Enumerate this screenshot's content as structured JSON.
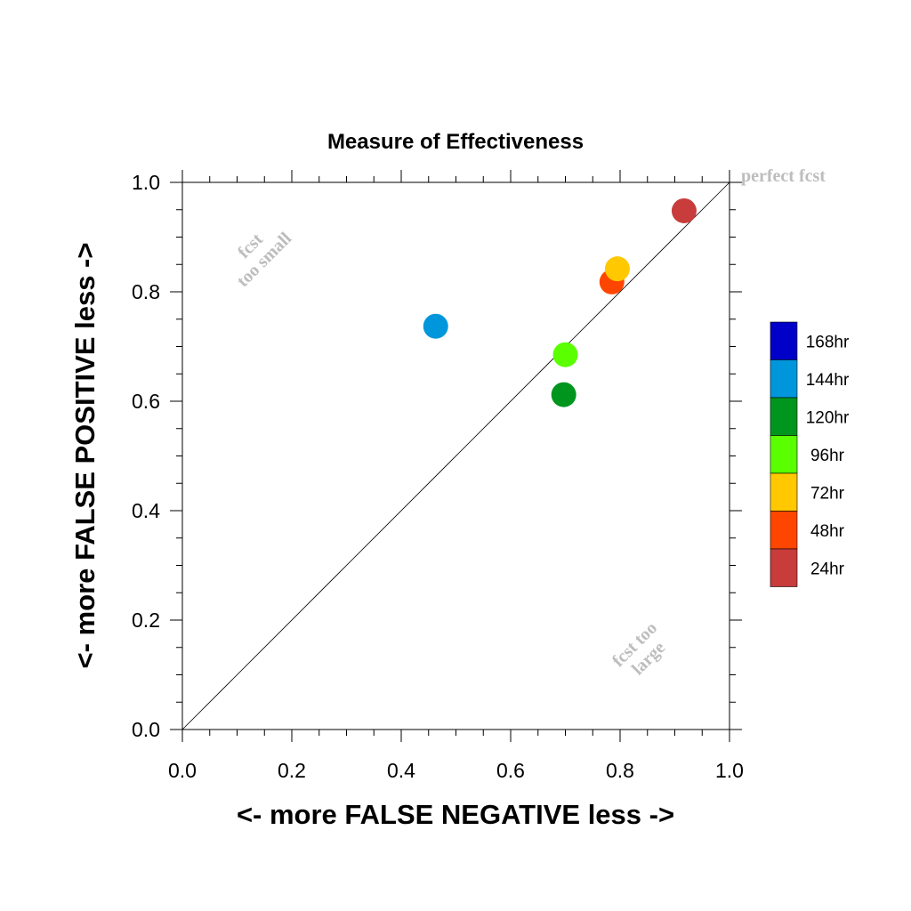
{
  "chart_data": {
    "type": "scatter",
    "title": "Measure of Effectiveness",
    "xlabel": "<- more   FALSE NEGATIVE   less ->",
    "ylabel": "<- more   FALSE POSITIVE   less ->",
    "xlim": [
      0.0,
      1.0
    ],
    "ylim": [
      0.0,
      1.0
    ],
    "x_ticks": [
      "0.0",
      "0.2",
      "0.4",
      "0.6",
      "0.8",
      "1.0"
    ],
    "y_ticks": [
      "0.0",
      "0.2",
      "0.4",
      "0.6",
      "0.8",
      "1.0"
    ],
    "grid": false,
    "diagonal_line": true,
    "annotations": {
      "perfect": "perfect fcst",
      "small_line1": "fcst",
      "small_line2": "too small",
      "large_line1": "fcst too",
      "large_line2": "large"
    },
    "legend": {
      "placement": "right",
      "entries": [
        {
          "label": "168hr",
          "color": "#0000c8"
        },
        {
          "label": "144hr",
          "color": "#0096dc"
        },
        {
          "label": "120hr",
          "color": "#00961e"
        },
        {
          "label": "96hr",
          "color": "#5aff00"
        },
        {
          "label": "72hr",
          "color": "#ffc800"
        },
        {
          "label": "48hr",
          "color": "#ff4600"
        },
        {
          "label": "24hr",
          "color": "#c83c3c"
        }
      ]
    },
    "points": [
      {
        "x": 0.463,
        "y": 0.737,
        "color": "#0096dc"
      },
      {
        "x": 0.697,
        "y": 0.612,
        "color": "#00961e"
      },
      {
        "x": 0.7,
        "y": 0.685,
        "color": "#5aff00"
      },
      {
        "x": 0.785,
        "y": 0.818,
        "color": "#ff4600"
      },
      {
        "x": 0.795,
        "y": 0.842,
        "color": "#ffc800"
      },
      {
        "x": 0.917,
        "y": 0.948,
        "color": "#c83c3c"
      }
    ]
  }
}
